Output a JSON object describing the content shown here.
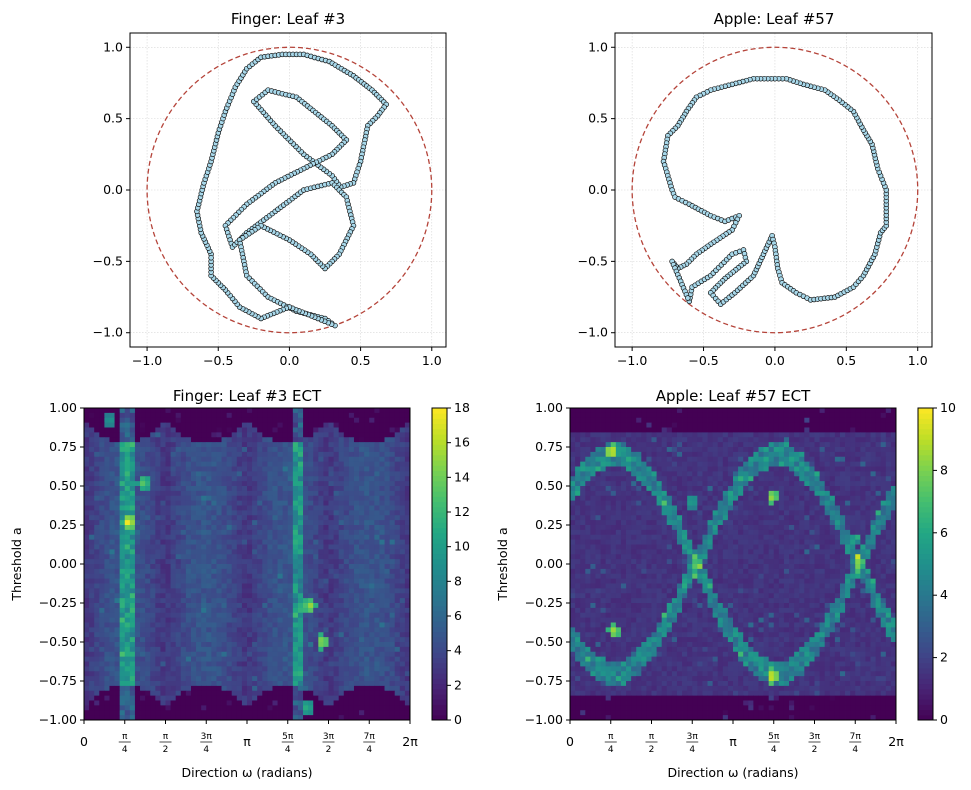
{
  "chart_data": [
    {
      "id": "finger-outline",
      "type": "scatter",
      "title": "Finger: Leaf #3",
      "xlim": [
        -1.12,
        1.1
      ],
      "ylim": [
        -1.1,
        1.1
      ],
      "xticks": [
        -1.0,
        -0.5,
        0.0,
        0.5,
        1.0
      ],
      "yticks": [
        -1.0,
        -0.5,
        0.0,
        0.5,
        1.0
      ],
      "tick_labels": [
        "−1.0",
        "−0.5",
        "0.0",
        "0.5",
        "1.0"
      ],
      "grid": true,
      "circle": {
        "radius": 1.0,
        "style": "dashed",
        "color": "#b5443a"
      },
      "series": [
        {
          "name": "outline",
          "marker_color": "#a8d8ea",
          "line_color": "#555555",
          "points": [
            [
              -0.55,
              -0.45
            ],
            [
              -0.62,
              -0.3
            ],
            [
              -0.65,
              -0.15
            ],
            [
              -0.6,
              0.05
            ],
            [
              -0.55,
              0.2
            ],
            [
              -0.5,
              0.4
            ],
            [
              -0.45,
              0.55
            ],
            [
              -0.38,
              0.72
            ],
            [
              -0.3,
              0.85
            ],
            [
              -0.2,
              0.93
            ],
            [
              -0.05,
              0.95
            ],
            [
              0.1,
              0.95
            ],
            [
              0.28,
              0.9
            ],
            [
              0.45,
              0.8
            ],
            [
              0.58,
              0.7
            ],
            [
              0.68,
              0.6
            ],
            [
              0.62,
              0.52
            ],
            [
              0.55,
              0.45
            ],
            [
              0.5,
              0.2
            ],
            [
              0.45,
              0.05
            ],
            [
              0.36,
              0.02
            ],
            [
              0.3,
              0.1
            ],
            [
              0.1,
              0.25
            ],
            [
              -0.1,
              0.45
            ],
            [
              -0.25,
              0.62
            ],
            [
              -0.15,
              0.7
            ],
            [
              0.05,
              0.65
            ],
            [
              0.3,
              0.45
            ],
            [
              0.4,
              0.35
            ],
            [
              0.3,
              0.25
            ],
            [
              0.1,
              0.15
            ],
            [
              -0.1,
              0.05
            ],
            [
              -0.3,
              -0.1
            ],
            [
              -0.45,
              -0.25
            ],
            [
              -0.4,
              -0.4
            ],
            [
              -0.3,
              -0.3
            ],
            [
              -0.1,
              -0.15
            ],
            [
              0.1,
              0.0
            ],
            [
              0.3,
              0.05
            ],
            [
              0.4,
              -0.05
            ],
            [
              0.45,
              -0.25
            ],
            [
              0.35,
              -0.45
            ],
            [
              0.25,
              -0.55
            ],
            [
              0.15,
              -0.45
            ],
            [
              0.0,
              -0.35
            ],
            [
              -0.2,
              -0.25
            ],
            [
              -0.35,
              -0.35
            ],
            [
              -0.3,
              -0.6
            ],
            [
              -0.15,
              -0.75
            ],
            [
              0.05,
              -0.85
            ],
            [
              0.25,
              -0.9
            ],
            [
              0.32,
              -0.95
            ],
            [
              0.2,
              -0.9
            ],
            [
              0.0,
              -0.82
            ],
            [
              -0.2,
              -0.9
            ],
            [
              -0.35,
              -0.82
            ],
            [
              -0.45,
              -0.7
            ],
            [
              -0.55,
              -0.6
            ]
          ]
        }
      ]
    },
    {
      "id": "apple-outline",
      "type": "scatter",
      "title": "Apple: Leaf #57",
      "xlim": [
        -1.12,
        1.1
      ],
      "ylim": [
        -1.1,
        1.1
      ],
      "xticks": [
        -1.0,
        -0.5,
        0.0,
        0.5,
        1.0
      ],
      "yticks": [
        -1.0,
        -0.5,
        0.0,
        0.5,
        1.0
      ],
      "tick_labels": [
        "−1.0",
        "−0.5",
        "0.0",
        "0.5",
        "1.0"
      ],
      "grid": true,
      "circle": {
        "radius": 1.0,
        "style": "dashed",
        "color": "#b5443a"
      },
      "series": [
        {
          "name": "outline",
          "marker_color": "#a8d8ea",
          "line_color": "#555555",
          "points": [
            [
              -0.6,
              -0.78
            ],
            [
              -0.58,
              -0.68
            ],
            [
              -0.45,
              -0.6
            ],
            [
              -0.3,
              -0.45
            ],
            [
              -0.22,
              -0.42
            ],
            [
              -0.2,
              -0.5
            ],
            [
              -0.35,
              -0.62
            ],
            [
              -0.45,
              -0.72
            ],
            [
              -0.38,
              -0.8
            ],
            [
              -0.28,
              -0.72
            ],
            [
              -0.15,
              -0.6
            ],
            [
              -0.08,
              -0.45
            ],
            [
              -0.02,
              -0.32
            ],
            [
              0.0,
              -0.4
            ],
            [
              0.02,
              -0.55
            ],
            [
              0.05,
              -0.65
            ],
            [
              0.15,
              -0.72
            ],
            [
              0.25,
              -0.77
            ],
            [
              0.42,
              -0.75
            ],
            [
              0.55,
              -0.68
            ],
            [
              0.62,
              -0.6
            ],
            [
              0.7,
              -0.45
            ],
            [
              0.74,
              -0.3
            ],
            [
              0.78,
              -0.25
            ],
            [
              0.78,
              0.0
            ],
            [
              0.72,
              0.15
            ],
            [
              0.68,
              0.32
            ],
            [
              0.62,
              0.42
            ],
            [
              0.55,
              0.55
            ],
            [
              0.45,
              0.63
            ],
            [
              0.35,
              0.7
            ],
            [
              0.2,
              0.74
            ],
            [
              0.08,
              0.78
            ],
            [
              0.0,
              0.78
            ],
            [
              -0.15,
              0.78
            ],
            [
              -0.3,
              0.74
            ],
            [
              -0.45,
              0.7
            ],
            [
              -0.55,
              0.65
            ],
            [
              -0.62,
              0.55
            ],
            [
              -0.68,
              0.45
            ],
            [
              -0.75,
              0.38
            ],
            [
              -0.78,
              0.2
            ],
            [
              -0.75,
              0.1
            ],
            [
              -0.72,
              0.0
            ],
            [
              -0.7,
              -0.05
            ],
            [
              -0.6,
              -0.1
            ],
            [
              -0.45,
              -0.18
            ],
            [
              -0.35,
              -0.22
            ],
            [
              -0.25,
              -0.18
            ],
            [
              -0.3,
              -0.28
            ],
            [
              -0.45,
              -0.38
            ],
            [
              -0.55,
              -0.45
            ],
            [
              -0.62,
              -0.52
            ],
            [
              -0.68,
              -0.55
            ],
            [
              -0.72,
              -0.5
            ]
          ]
        }
      ]
    },
    {
      "id": "finger-ect",
      "type": "heatmap",
      "title": "Finger: Leaf #3 ECT",
      "xlabel": "Direction ω (radians)",
      "ylabel": "Threshold a",
      "xlim": [
        0,
        6.2832
      ],
      "ylim": [
        -1.0,
        1.0
      ],
      "xticks": [
        "0",
        "π/4",
        "π/2",
        "3π/4",
        "π",
        "5π/4",
        "3π/2",
        "7π/4",
        "2π"
      ],
      "yticks": [
        "−1.00",
        "−0.75",
        "−0.50",
        "−0.25",
        "0.00",
        "0.25",
        "0.50",
        "0.75",
        "1.00"
      ],
      "colormap": "viridis",
      "vmin": 0,
      "vmax": 18,
      "colorbar_ticks": [
        "0",
        "2",
        "4",
        "6",
        "8",
        "10",
        "12",
        "14",
        "16",
        "18"
      ],
      "grid_size": [
        64,
        64
      ],
      "seed": 3,
      "hotspots": [
        [
          0.87,
          0.27,
          18
        ],
        [
          1.15,
          0.52,
          14
        ],
        [
          4.35,
          -0.27,
          16
        ],
        [
          4.6,
          -0.5,
          16
        ],
        [
          4.3,
          -0.92,
          12
        ],
        [
          0.5,
          0.92,
          10
        ]
      ]
    },
    {
      "id": "apple-ect",
      "type": "heatmap",
      "title": "Apple: Leaf #57 ECT",
      "xlabel": "Direction ω (radians)",
      "ylabel": "Threshold a",
      "xlim": [
        0,
        6.2832
      ],
      "ylim": [
        -1.0,
        1.0
      ],
      "xticks": [
        "0",
        "π/4",
        "π/2",
        "3π/4",
        "π",
        "5π/4",
        "3π/2",
        "7π/4",
        "2π"
      ],
      "yticks": [
        "−1.00",
        "−0.75",
        "−0.50",
        "−0.25",
        "0.00",
        "0.25",
        "0.50",
        "0.75",
        "1.00"
      ],
      "colormap": "viridis",
      "vmin": 0,
      "vmax": 10,
      "colorbar_ticks": [
        "0",
        "2",
        "4",
        "6",
        "8",
        "10"
      ],
      "grid_size": [
        64,
        64
      ],
      "seed": 57,
      "hotspots": [
        [
          0.8,
          0.72,
          10
        ],
        [
          0.85,
          -0.43,
          9
        ],
        [
          3.9,
          0.43,
          9
        ],
        [
          3.9,
          -0.72,
          10
        ],
        [
          2.35,
          0.4,
          6
        ],
        [
          5.45,
          0.15,
          6
        ]
      ]
    }
  ]
}
